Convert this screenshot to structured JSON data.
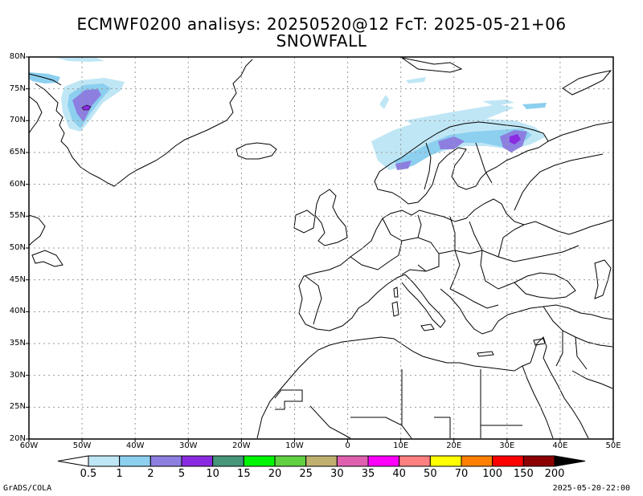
{
  "title_line1": "ECMWF0200 analisys: 20250520@12 FcT: 2025-05-21+06",
  "title_line2": "SNOWFALL",
  "lat_labels": [
    "80N",
    "75N",
    "70N",
    "65N",
    "60N",
    "55N",
    "50N",
    "45N",
    "40N",
    "35N",
    "30N",
    "25N",
    "20N"
  ],
  "lon_labels": [
    "60W",
    "50W",
    "40W",
    "30W",
    "20W",
    "10W",
    "0",
    "10E",
    "20E",
    "30E",
    "40E",
    "50E"
  ],
  "colorbar": {
    "labels": [
      "0.5",
      "1",
      "2",
      "5",
      "10",
      "15",
      "20",
      "25",
      "30",
      "35",
      "40",
      "50",
      "70",
      "100",
      "150",
      "200"
    ],
    "colors": [
      "#ffffff",
      "#bfe6f5",
      "#8ccfef",
      "#8c7fe0",
      "#8a2be2",
      "#46967a",
      "#00f500",
      "#5fd040",
      "#c0b070",
      "#e060b0",
      "#ff00ff",
      "#ff8080",
      "#ffff00",
      "#ff8000",
      "#ff0000",
      "#8b0000",
      "#000000"
    ]
  },
  "snow_colors": {
    "light": "#bfe6f5",
    "medium": "#8ccfef",
    "heavy": "#8c7fe0",
    "very_heavy": "#8a2be2"
  },
  "footer_left": "GrADS/COLA",
  "footer_right": "2025-05-20-22:00"
}
